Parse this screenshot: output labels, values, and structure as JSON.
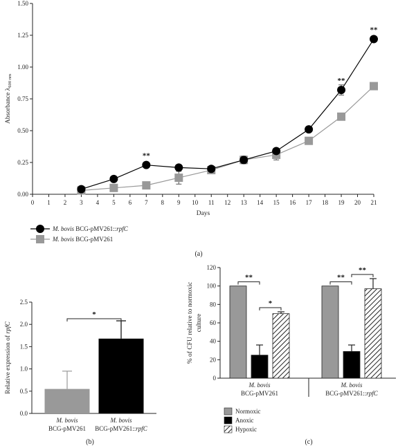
{
  "chart_data": [
    {
      "panel": "(a)",
      "type": "line",
      "xlabel": "Days",
      "ylabel": "Absorbance λ600 nm",
      "ylabel_main": "Absorbance λ",
      "ylabel_sub": "600 nm",
      "xlim": [
        0,
        21
      ],
      "ylim": [
        0,
        1.5
      ],
      "xticks": [
        "0",
        "1",
        "2",
        "3",
        "4",
        "5",
        "6",
        "7",
        "8",
        "9",
        "10",
        "11",
        "12",
        "13",
        "14",
        "15",
        "16",
        "17",
        "18",
        "19",
        "20",
        "21"
      ],
      "yticks": [
        "0.00",
        "0.25",
        "0.50",
        "0.75",
        "1.00",
        "1.25",
        "1.50"
      ],
      "series": [
        {
          "name": "M. bovis BCG-pMV261::rpfC",
          "legend_italic": "M. bovis",
          "legend_plain": " BCG-pMV261::",
          "legend_italic2": "rpfC",
          "marker": "circle",
          "color": "#000000",
          "x": [
            3,
            5,
            7,
            9,
            11,
            13,
            15,
            17,
            19,
            21
          ],
          "y": [
            0.04,
            0.12,
            0.23,
            0.21,
            0.2,
            0.27,
            0.34,
            0.51,
            0.82,
            1.22
          ],
          "err": [
            0.01,
            0.01,
            0.01,
            0.02,
            0.01,
            0.03,
            0.02,
            0.01,
            0.04,
            0.01
          ]
        },
        {
          "name": "M. bovis BCG-pMV261",
          "legend_italic": "M. bovis",
          "legend_plain": " BCG-pMV261",
          "legend_italic2": "",
          "marker": "square",
          "color": "#999999",
          "x": [
            3,
            5,
            7,
            9,
            11,
            13,
            15,
            17,
            19,
            21
          ],
          "y": [
            0.03,
            0.05,
            0.07,
            0.13,
            0.19,
            0.27,
            0.31,
            0.42,
            0.61,
            0.85
          ],
          "err": [
            0.01,
            0.01,
            0.01,
            0.05,
            0.01,
            0.01,
            0.04,
            0.01,
            0.01,
            0.01
          ]
        }
      ],
      "annotations": [
        {
          "x": 7,
          "y": 0.23,
          "text": "**"
        },
        {
          "x": 19,
          "y": 0.82,
          "text": "**"
        },
        {
          "x": 21,
          "y": 1.22,
          "text": "**"
        }
      ]
    },
    {
      "panel": "(b)",
      "type": "bar",
      "ylabel": "Relative expression of rpfC",
      "ylabel_plain": "Relative expression of ",
      "ylabel_italic": "rpfC",
      "ylim": [
        0,
        2.5
      ],
      "yticks": [
        "0.0",
        "0.5",
        "1.0",
        "1.5",
        "2.0",
        "2.5"
      ],
      "categories": [
        {
          "italic": "M. bovis",
          "line2": "BCG-pMV261",
          "line2_italic": ""
        },
        {
          "italic": "M. bovis",
          "line2": "BCG-pMV261::",
          "line2_italic": "rpfC"
        }
      ],
      "values": [
        0.55,
        1.68
      ],
      "errors": [
        0.4,
        0.4
      ],
      "colors": [
        "#999999",
        "#000000"
      ],
      "annotation": "*"
    },
    {
      "panel": "(c)",
      "type": "bar",
      "ylabel_line1": "% of CFU relative to normoxic",
      "ylabel_line2": "culture",
      "ylim": [
        0,
        120
      ],
      "yticks": [
        "0",
        "20",
        "40",
        "60",
        "80",
        "100",
        "120"
      ],
      "groups": [
        {
          "italic": "M. bovis",
          "line2": "BCG-pMV261",
          "line2_italic": ""
        },
        {
          "italic": "M. bovis",
          "line2": "BCG-pMV261::",
          "line2_italic": "rpfC"
        }
      ],
      "series": [
        {
          "name": "Normoxic",
          "fill": "#999999",
          "values": [
            100,
            100
          ],
          "errors": [
            0,
            0
          ]
        },
        {
          "name": "Anoxic",
          "fill": "#000000",
          "values": [
            25,
            29
          ],
          "errors": [
            11,
            7
          ]
        },
        {
          "name": "Hypoxic",
          "fill": "hatch",
          "values": [
            70,
            97
          ],
          "errors": [
            2,
            11
          ]
        }
      ],
      "annotations": [
        {
          "group": 0,
          "from": 0,
          "to": 1,
          "text": "**"
        },
        {
          "group": 0,
          "from": 1,
          "to": 2,
          "text": "*"
        },
        {
          "group": 1,
          "from": 0,
          "to": 1,
          "text": "**"
        },
        {
          "group": 1,
          "from": 1,
          "to": 2,
          "text": "**"
        }
      ]
    }
  ]
}
